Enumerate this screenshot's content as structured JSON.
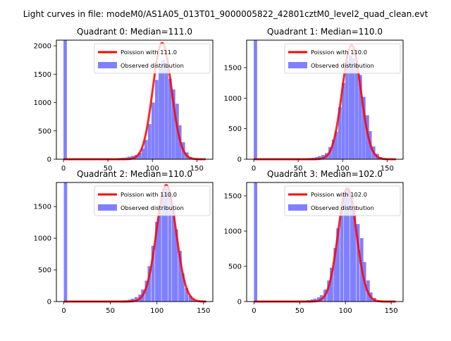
{
  "figure": {
    "suptitle": "Light curves in file: modeM0/AS1A05_013T01_9000005822_42801cztM0_level2_quad_clean.evt"
  },
  "colors": {
    "poisson_line": "#ff0000",
    "histogram": "#8080ff"
  },
  "chart_data": [
    {
      "type": "bar",
      "title": "Quadrant 0: Median=111.0",
      "xlabel": "",
      "ylabel": "",
      "xlim": [
        -8,
        168
      ],
      "ylim": [
        0,
        2100
      ],
      "xticks": [
        0,
        50,
        100,
        150
      ],
      "yticks": [
        0,
        500,
        1000,
        1500,
        2000
      ],
      "legend": {
        "placement": "top-right",
        "entries": [
          "Poission with 111.0",
          "Observed distribution"
        ]
      },
      "series": [
        {
          "name": "Observed distribution",
          "kind": "histogram",
          "bin_width": 3.8,
          "bins_start": [
            0,
            61,
            65,
            69,
            72,
            76,
            80,
            84,
            88,
            91,
            95,
            99,
            103,
            107,
            110,
            114,
            118,
            122,
            126,
            129,
            133,
            137,
            141,
            145,
            149,
            152,
            156
          ],
          "counts": [
            2100,
            20,
            25,
            30,
            45,
            60,
            75,
            110,
            190,
            340,
            620,
            1000,
            1400,
            1620,
            1750,
            1640,
            1420,
            1230,
            980,
            600,
            300,
            120,
            40,
            10,
            5,
            2,
            1
          ]
        },
        {
          "name": "Poission with 111.0",
          "kind": "poisson_curve",
          "mean": 111.0,
          "peak": 2050,
          "x_range": [
            0,
            160
          ]
        }
      ]
    },
    {
      "type": "bar",
      "title": "Quadrant 1: Median=110.0",
      "xlabel": "",
      "ylabel": "",
      "xlim": [
        -8,
        168
      ],
      "ylim": [
        0,
        1950
      ],
      "xticks": [
        0,
        50,
        100,
        150
      ],
      "yticks": [
        0,
        500,
        1000,
        1500
      ],
      "legend": {
        "placement": "top-right",
        "entries": [
          "Poission with 110.0",
          "Observed distribution"
        ]
      },
      "series": [
        {
          "name": "Observed distribution",
          "kind": "histogram",
          "bin_width": 3.8,
          "bins_start": [
            0,
            61,
            65,
            69,
            72,
            76,
            80,
            84,
            88,
            91,
            95,
            99,
            103,
            107,
            110,
            114,
            118,
            122,
            126,
            129,
            133,
            137,
            141,
            145,
            149,
            152,
            156
          ],
          "counts": [
            1950,
            20,
            25,
            35,
            50,
            70,
            100,
            200,
            320,
            450,
            850,
            1250,
            1600,
            1700,
            1650,
            1580,
            1380,
            1020,
            720,
            460,
            210,
            90,
            35,
            15,
            5,
            2,
            1
          ]
        },
        {
          "name": "Poission with 110.0",
          "kind": "poisson_curve",
          "mean": 110.0,
          "peak": 1870,
          "x_range": [
            0,
            160
          ]
        }
      ]
    },
    {
      "type": "bar",
      "title": "Quadrant 2: Median=110.0",
      "xlabel": "",
      "ylabel": "",
      "xlim": [
        -8,
        160
      ],
      "ylim": [
        0,
        1880
      ],
      "xticks": [
        0,
        50,
        100,
        150
      ],
      "yticks": [
        0,
        500,
        1000,
        1500
      ],
      "legend": {
        "placement": "top-right",
        "entries": [
          "Poission with 110.0",
          "Observed distribution"
        ]
      },
      "series": [
        {
          "name": "Observed distribution",
          "kind": "histogram",
          "bin_width": 3.6,
          "bins_start": [
            0,
            62,
            65,
            69,
            72,
            76,
            80,
            83,
            87,
            90,
            94,
            98,
            101,
            105,
            108,
            112,
            116,
            119,
            123,
            126,
            130,
            134,
            137,
            141,
            144,
            148
          ],
          "counts": [
            1880,
            15,
            20,
            30,
            45,
            70,
            110,
            190,
            330,
            560,
            880,
            1260,
            1520,
            1700,
            1800,
            1720,
            1460,
            1140,
            800,
            440,
            210,
            90,
            35,
            15,
            5,
            2
          ]
        },
        {
          "name": "Poission with 110.0",
          "kind": "poisson_curve",
          "mean": 110.0,
          "peak": 1840,
          "x_range": [
            0,
            153
          ]
        }
      ]
    },
    {
      "type": "bar",
      "title": "Quadrant 3: Median=102.0",
      "xlabel": "",
      "ylabel": "",
      "xlim": [
        -8,
        163
      ],
      "ylim": [
        0,
        1690
      ],
      "xticks": [
        0,
        50,
        100,
        150
      ],
      "yticks": [
        0,
        500,
        1000,
        1500
      ],
      "legend": {
        "placement": "top-right",
        "entries": [
          "Poission with 102.0",
          "Observed distribution"
        ]
      },
      "series": [
        {
          "name": "Observed distribution",
          "kind": "histogram",
          "bin_width": 3.6,
          "bins_start": [
            0,
            54,
            58,
            62,
            65,
            69,
            72,
            76,
            80,
            83,
            87,
            90,
            94,
            98,
            101,
            105,
            108,
            112,
            116,
            119,
            123,
            126,
            130,
            134,
            137,
            141,
            144,
            148
          ],
          "counts": [
            1690,
            15,
            20,
            30,
            40,
            60,
            90,
            170,
            300,
            480,
            760,
            1040,
            1320,
            1530,
            1600,
            1500,
            1310,
            1100,
            900,
            560,
            300,
            130,
            50,
            20,
            8,
            4,
            2,
            1
          ]
        },
        {
          "name": "Poission with 102.0",
          "kind": "poisson_curve",
          "mean": 102.0,
          "peak": 1610,
          "x_range": [
            0,
            155
          ]
        }
      ]
    }
  ]
}
